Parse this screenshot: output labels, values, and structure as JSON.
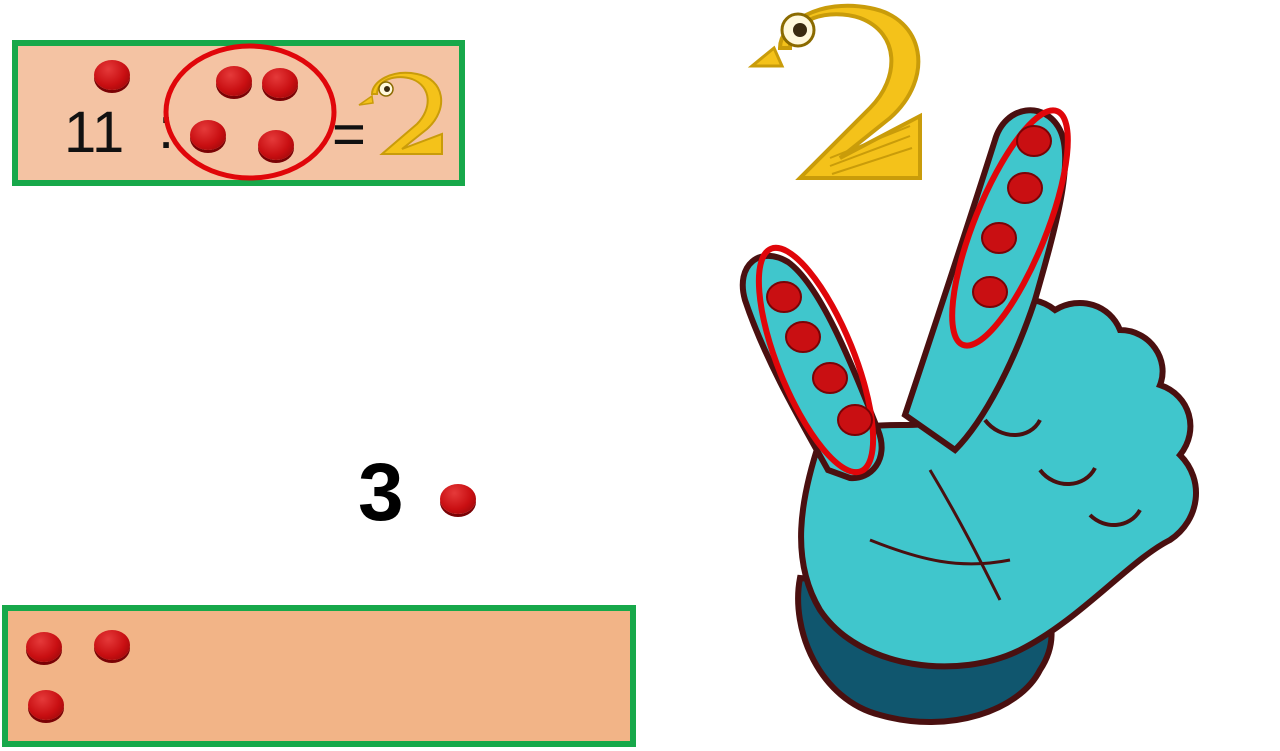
{
  "expression": {
    "dividend": "11",
    "operator": ":",
    "equals": "="
  },
  "remainder_label": "3",
  "colors": {
    "panel_fill": "#f4c3a3",
    "panel_border": "#17a84a",
    "counter_red": "#c90f12",
    "hand_cyan": "#40c6cc",
    "swan_yellow": "#f4c21a",
    "group_ring": "#e0060a"
  },
  "icons": [
    "swan-two-icon",
    "hand-two-fingers-icon",
    "counter-chip-icon",
    "group-circle"
  ]
}
